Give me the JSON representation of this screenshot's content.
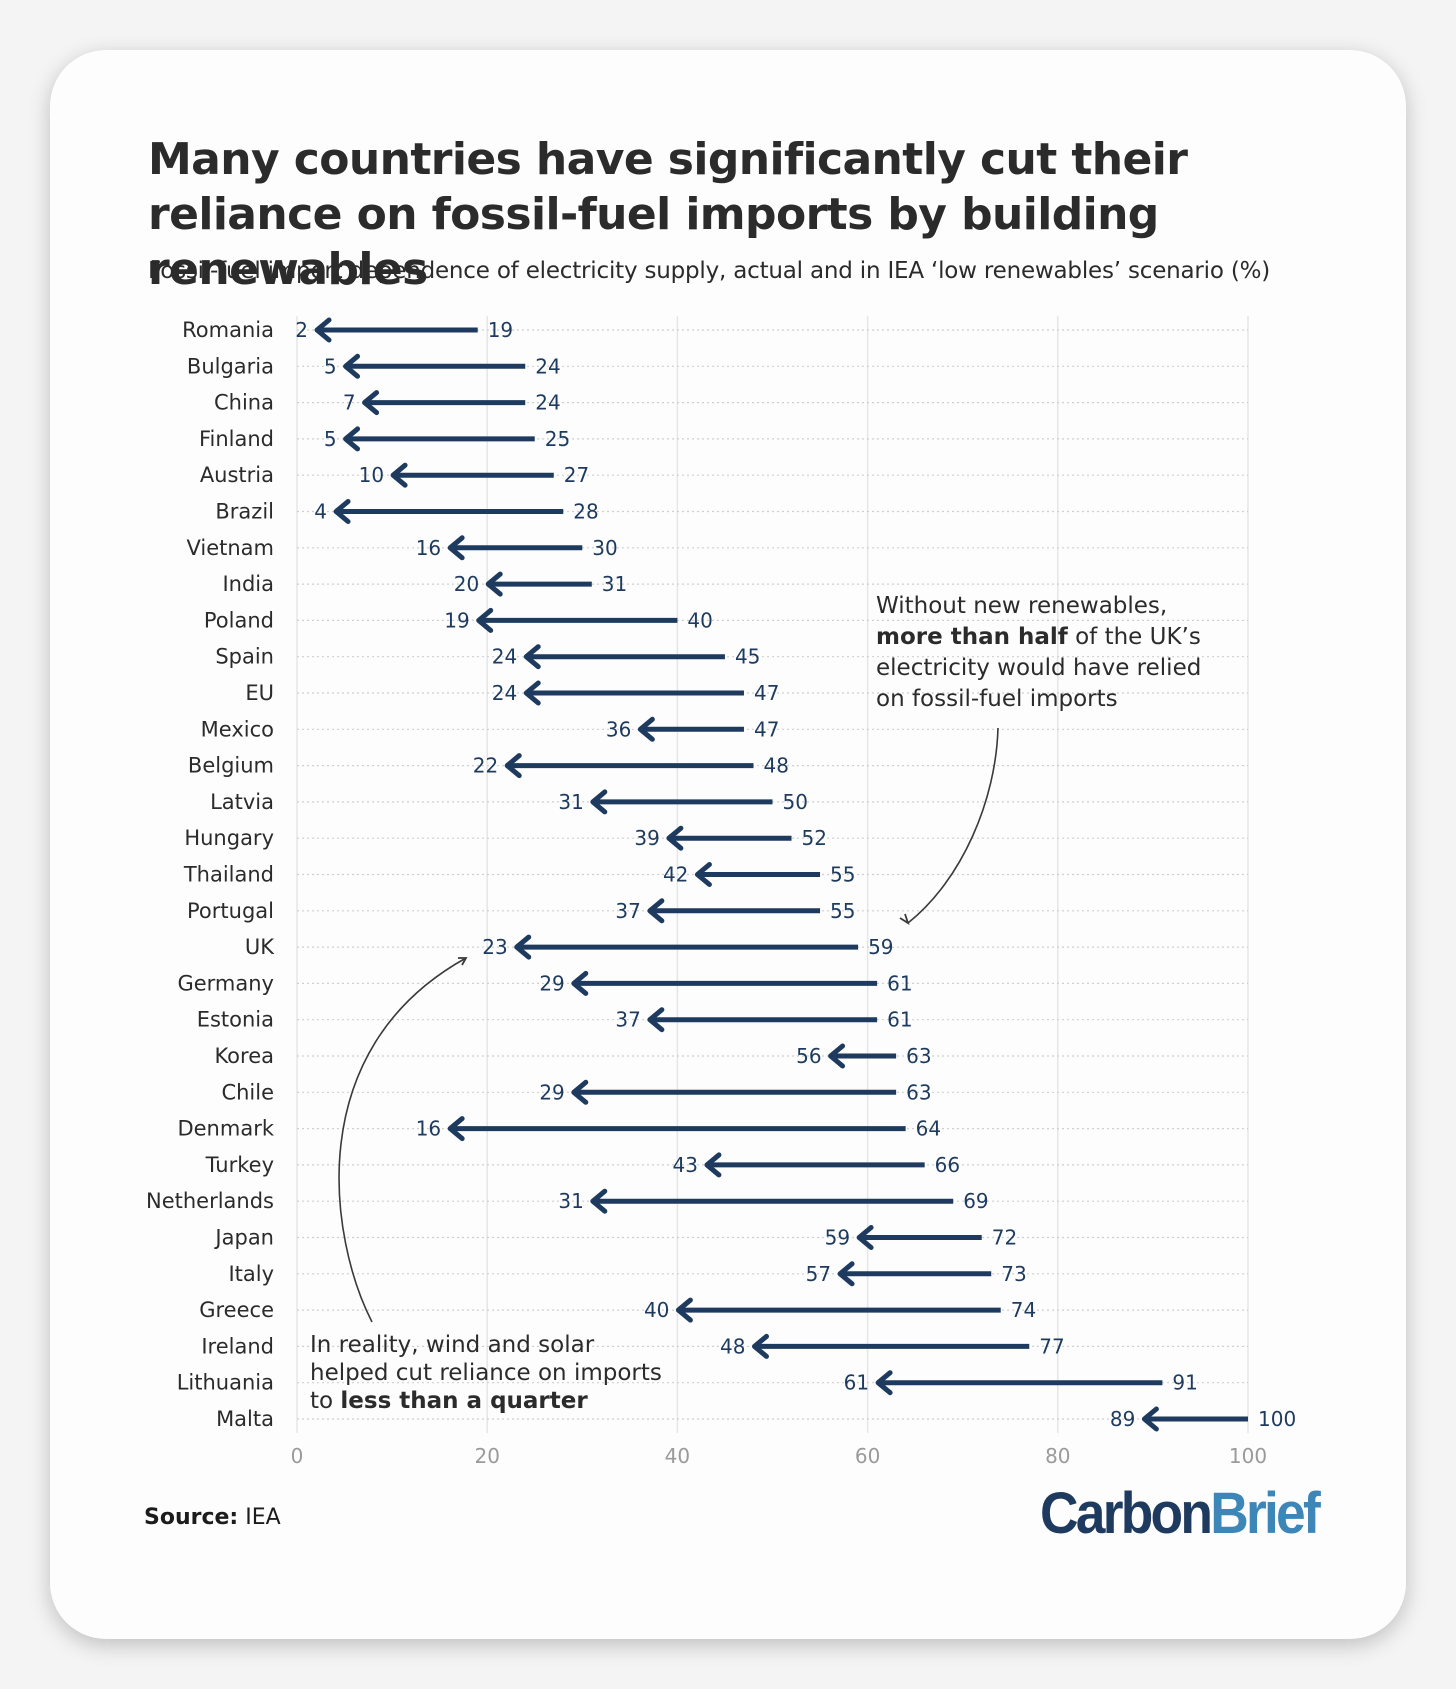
{
  "chart_data": {
    "type": "arrow-dumbbell",
    "title": "Many countries have significantly cut their reliance on fossil-fuel imports by building renewables",
    "subtitle": "Fossil-fuel import dependence of electricity supply, actual and in IEA ‘low renewables’ scenario (%)",
    "xlim": [
      0,
      100
    ],
    "xticks": [
      0,
      20,
      40,
      60,
      80,
      100
    ],
    "series_names": [
      "Actual",
      "Low renewables scenario"
    ],
    "rows": [
      {
        "country": "Romania",
        "actual": 2,
        "scenario": 19
      },
      {
        "country": "Bulgaria",
        "actual": 5,
        "scenario": 24
      },
      {
        "country": "China",
        "actual": 7,
        "scenario": 24
      },
      {
        "country": "Finland",
        "actual": 5,
        "scenario": 25
      },
      {
        "country": "Austria",
        "actual": 10,
        "scenario": 27
      },
      {
        "country": "Brazil",
        "actual": 4,
        "scenario": 28
      },
      {
        "country": "Vietnam",
        "actual": 16,
        "scenario": 30
      },
      {
        "country": "India",
        "actual": 20,
        "scenario": 31
      },
      {
        "country": "Poland",
        "actual": 19,
        "scenario": 40
      },
      {
        "country": "Spain",
        "actual": 24,
        "scenario": 45
      },
      {
        "country": "EU",
        "actual": 24,
        "scenario": 47
      },
      {
        "country": "Mexico",
        "actual": 36,
        "scenario": 47
      },
      {
        "country": "Belgium",
        "actual": 22,
        "scenario": 48
      },
      {
        "country": "Latvia",
        "actual": 31,
        "scenario": 50
      },
      {
        "country": "Hungary",
        "actual": 39,
        "scenario": 52
      },
      {
        "country": "Thailand",
        "actual": 42,
        "scenario": 55
      },
      {
        "country": "Portugal",
        "actual": 37,
        "scenario": 55
      },
      {
        "country": "UK",
        "actual": 23,
        "scenario": 59
      },
      {
        "country": "Germany",
        "actual": 29,
        "scenario": 61
      },
      {
        "country": "Estonia",
        "actual": 37,
        "scenario": 61
      },
      {
        "country": "Korea",
        "actual": 56,
        "scenario": 63
      },
      {
        "country": "Chile",
        "actual": 29,
        "scenario": 63
      },
      {
        "country": "Denmark",
        "actual": 16,
        "scenario": 64
      },
      {
        "country": "Turkey",
        "actual": 43,
        "scenario": 66
      },
      {
        "country": "Netherlands",
        "actual": 31,
        "scenario": 69
      },
      {
        "country": "Japan",
        "actual": 59,
        "scenario": 72
      },
      {
        "country": "Italy",
        "actual": 57,
        "scenario": 73
      },
      {
        "country": "Greece",
        "actual": 40,
        "scenario": 74
      },
      {
        "country": "Ireland",
        "actual": 48,
        "scenario": 77
      },
      {
        "country": "Lithuania",
        "actual": 61,
        "scenario": 91
      },
      {
        "country": "Malta",
        "actual": 89,
        "scenario": 100
      }
    ],
    "annotations": [
      {
        "id": "uk-scenario",
        "lines": [
          [
            {
              "t": "Without new renewables,",
              "b": false
            }
          ],
          [
            {
              "t": "more than half",
              "b": true
            },
            {
              "t": " of the UK’s",
              "b": false
            }
          ],
          [
            {
              "t": "electricity would have relied",
              "b": false
            }
          ],
          [
            {
              "t": "on fossil-fuel imports",
              "b": false
            }
          ]
        ]
      },
      {
        "id": "uk-actual",
        "lines": [
          [
            {
              "t": "In reality, wind and solar",
              "b": false
            }
          ],
          [
            {
              "t": "helped cut reliance on imports",
              "b": false
            }
          ],
          [
            {
              "t": "to ",
              "b": false
            },
            {
              "t": "less than a quarter",
              "b": true
            }
          ]
        ]
      }
    ]
  },
  "colors": {
    "arrow": "#1e3b5f",
    "text": "#2b2b2b",
    "grid": "#e6e6e6",
    "tick": "#9a9a9a"
  },
  "footer": {
    "source_label": "Source:",
    "source_value": "IEA"
  },
  "brand": {
    "part1": "Carbon",
    "part2": "Brief"
  }
}
